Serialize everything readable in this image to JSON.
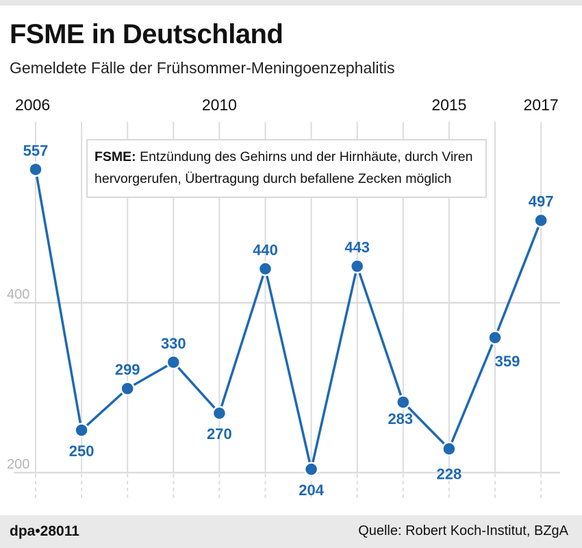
{
  "header": {
    "title": "FSME in Deutschland",
    "subtitle": "Gemeldete Fälle der Frühsommer-Meningoenzephalitis"
  },
  "note": {
    "bold": "FSME:",
    "line1": " Entzündung des Gehirns und der Hirnhäute, durch Viren",
    "line2": "hervorgerufen, Übertragung durch befallene Zecken möglich"
  },
  "footer": {
    "brand": "dpa•28011",
    "source": "Quelle: Robert Koch-Institut, BZgA"
  },
  "colors": {
    "series": "#1f69b2",
    "grid": "#dcdcdc",
    "axis_text": "#b5b5b5"
  },
  "chart_data": {
    "type": "line",
    "title": "FSME in Deutschland",
    "subtitle": "Gemeldete Fälle der Frühsommer-Meningoenzephalitis",
    "x": [
      2006,
      2007,
      2008,
      2009,
      2010,
      2011,
      2012,
      2013,
      2014,
      2015,
      2016,
      2017
    ],
    "x_tick_labels": [
      {
        "year": 2006,
        "label": "2006"
      },
      {
        "year": 2010,
        "label": "2010"
      },
      {
        "year": 2015,
        "label": "2015"
      },
      {
        "year": 2017,
        "label": "2017"
      }
    ],
    "series": [
      {
        "name": "Gemeldete Fälle",
        "values": [
          557,
          250,
          299,
          330,
          270,
          440,
          204,
          443,
          283,
          228,
          359,
          497
        ]
      }
    ],
    "label_positions": [
      "above",
      "below",
      "above",
      "above",
      "below",
      "above",
      "below",
      "above",
      "below",
      "below",
      "below",
      "above"
    ],
    "y_ticks": [
      200,
      400
    ],
    "ylim": [
      200,
      560
    ],
    "xlabel": "",
    "ylabel": "",
    "grid": true,
    "legend": "none"
  }
}
